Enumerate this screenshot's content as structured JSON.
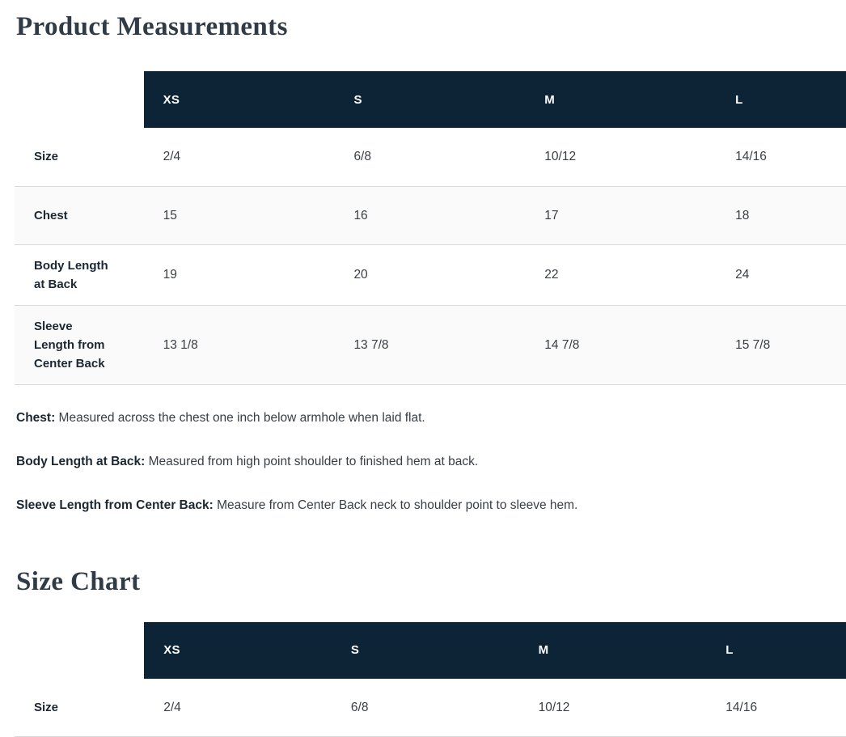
{
  "titles": {
    "product_measurements": "Product Measurements",
    "size_chart": "Size Chart"
  },
  "measurement_table": {
    "columns": [
      "XS",
      "S",
      "M",
      "L"
    ],
    "rows": [
      {
        "label": "Size",
        "values": [
          "2/4",
          "6/8",
          "10/12",
          "14/16"
        ]
      },
      {
        "label": "Chest",
        "values": [
          "15",
          "16",
          "17",
          "18"
        ]
      },
      {
        "label": "Body Length at Back",
        "values": [
          "19",
          "20",
          "22",
          "24"
        ]
      },
      {
        "label": "Sleeve Length from Center Back",
        "values": [
          "13 1/8",
          "13 7/8",
          "14 7/8",
          "15 7/8"
        ]
      }
    ]
  },
  "definitions": [
    {
      "term": "Chest:",
      "text": " Measured across the chest one inch below armhole when laid flat."
    },
    {
      "term": "Body Length at Back:",
      "text": " Measured from high point shoulder to finished hem at back."
    },
    {
      "term": "Sleeve Length from Center Back:",
      "text": " Measure from Center Back neck to shoulder point to sleeve hem."
    }
  ],
  "size_chart_table": {
    "columns": [
      "XS",
      "S",
      "M",
      "L"
    ],
    "rows": [
      {
        "label": "Size",
        "values": [
          "2/4",
          "6/8",
          "10/12",
          "14/16"
        ]
      }
    ]
  },
  "colors": {
    "header_bg": "#0d2436",
    "header_text": "#ffffff",
    "row_alt_bg": "#fafafa",
    "border": "#d9d9d9",
    "label_text": "#1b2733",
    "value_text": "#383e44",
    "title_text": "#2f3b46"
  }
}
